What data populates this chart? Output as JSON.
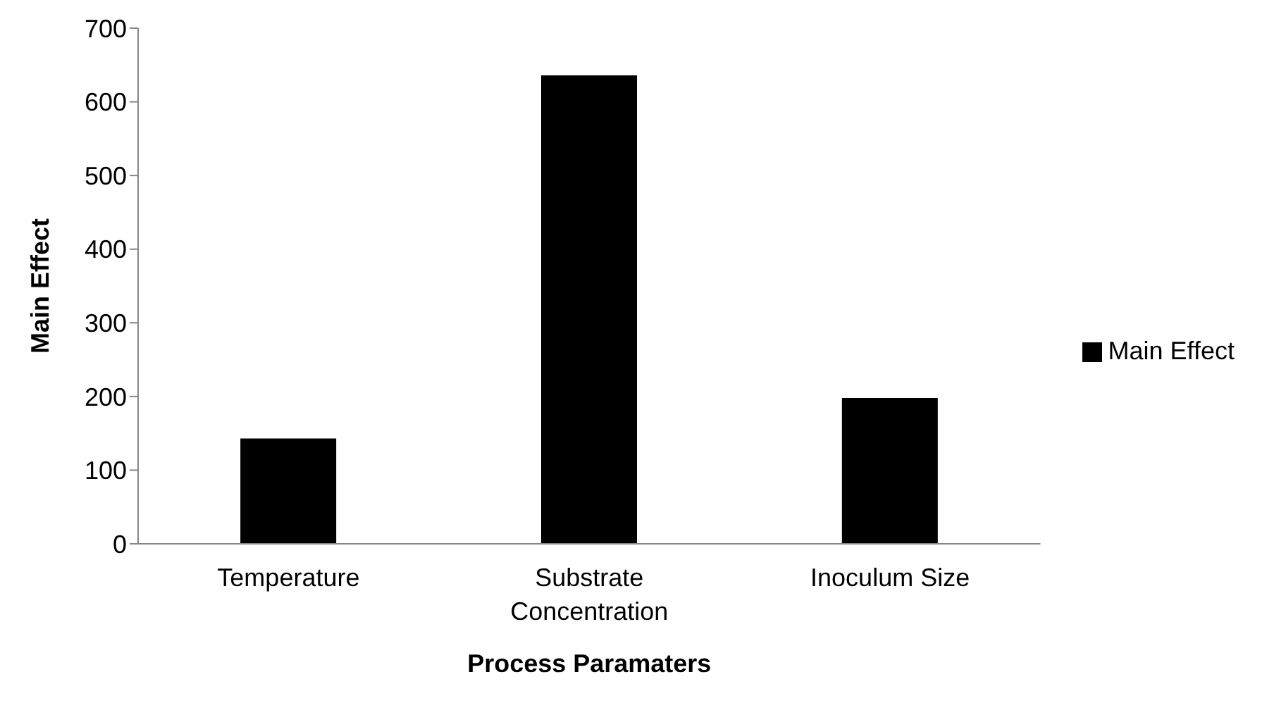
{
  "chart_data": {
    "type": "bar",
    "xlabel": "Process Paramaters",
    "ylabel": "Main Effect",
    "categories": [
      "Temperature",
      "Substrate Concentration",
      "Inoculum Size"
    ],
    "series": [
      {
        "name": "Main Effect",
        "color": "#000000",
        "values": [
          143,
          636,
          198
        ]
      }
    ],
    "ylim": [
      0,
      700
    ],
    "yticks": [
      0,
      100,
      200,
      300,
      400,
      500,
      600,
      700
    ],
    "grid": false,
    "legend": "right"
  }
}
